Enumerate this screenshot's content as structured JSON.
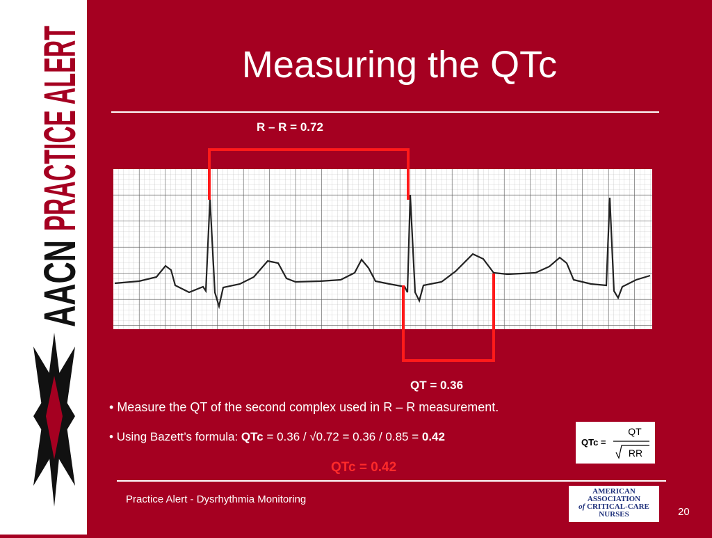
{
  "sidebar": {
    "brand": "AACN",
    "label": "PRACTICE ALERT"
  },
  "header": {
    "title": "Measuring the QTc"
  },
  "figure": {
    "rr_label": "R – R = 0.72",
    "qt_label": "QT = 0.36"
  },
  "bullets": [
    {
      "parts": [
        {
          "text": "Measure the QT of the second complex used in R – R measurement."
        }
      ]
    },
    {
      "parts": [
        {
          "text": "Using Bazett’s formula: "
        },
        {
          "text": "QTc",
          "bold": true
        },
        {
          "text": " = 0.36 / √0.72 = 0.36 / 0.85 = "
        },
        {
          "text": "0.42",
          "bold": true
        }
      ]
    }
  ],
  "formula": {
    "lhs": "QTc =",
    "numerator": "QT",
    "denominator": "RR"
  },
  "result": "QTc = 0.42",
  "footer": {
    "text": "Practice Alert - Dysrhythmia Monitoring",
    "logo": [
      "AMERICAN",
      "ASSOCIATION",
      "of",
      "CRITICAL-CARE",
      "NURSES"
    ],
    "page": "20"
  }
}
